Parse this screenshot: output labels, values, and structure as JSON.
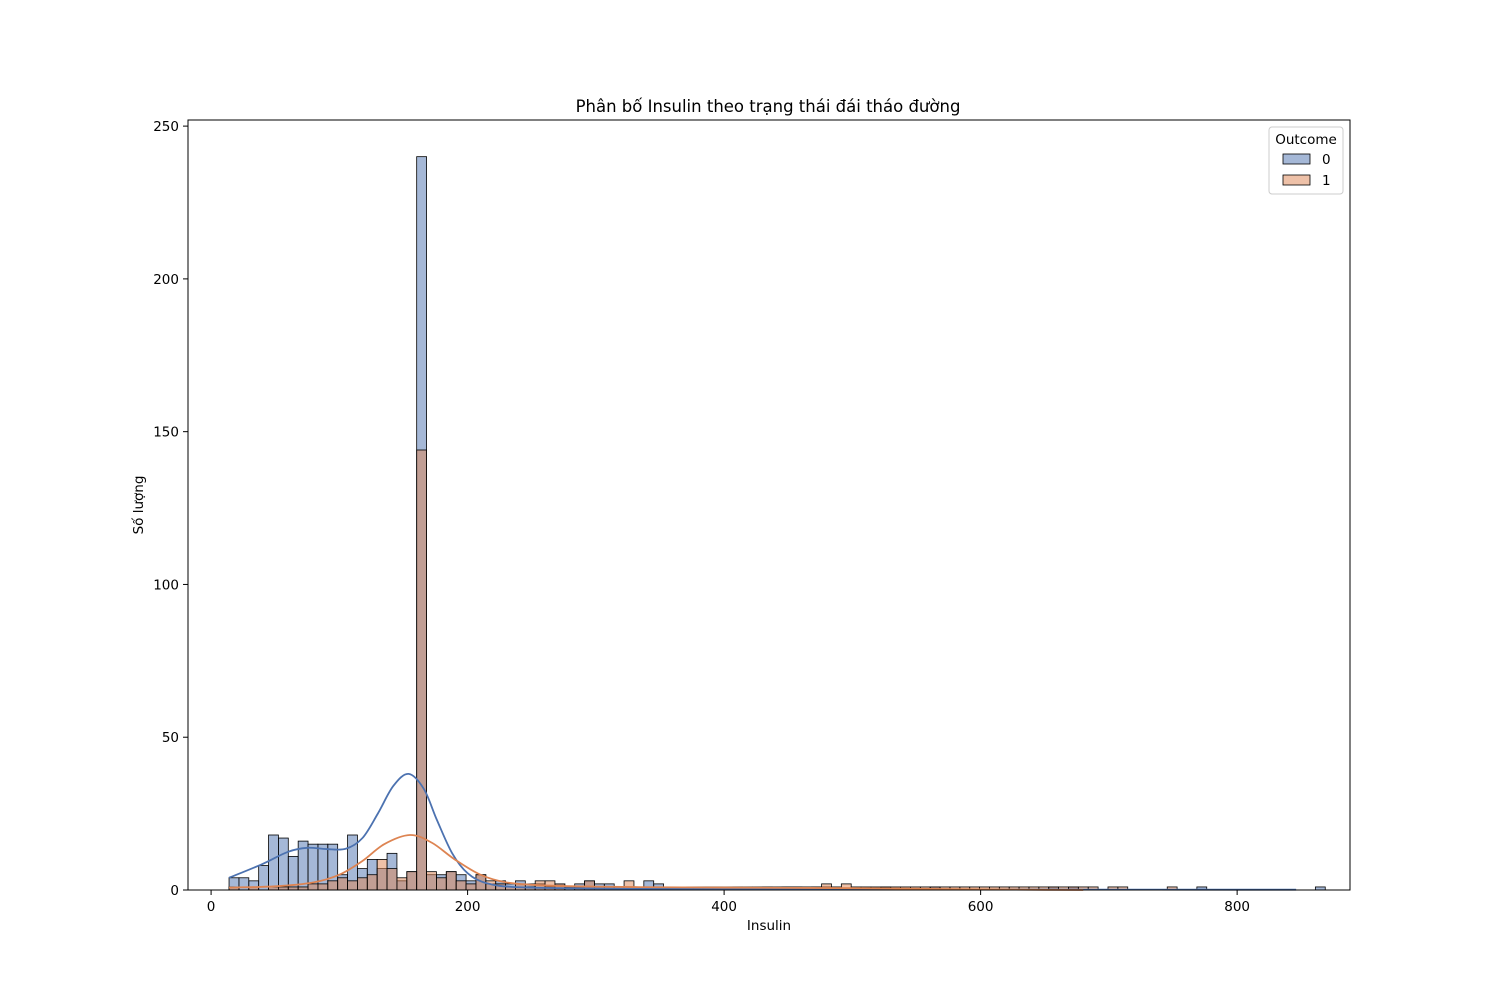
{
  "chart_data": {
    "type": "histogram",
    "title": "Phân bố Insulin theo trạng thái đái tháo đường",
    "xlabel": "Insulin",
    "ylabel": "Số lượng",
    "xlim": [
      -18,
      888
    ],
    "ylim": [
      0,
      252
    ],
    "xticks": [
      0,
      200,
      400,
      600,
      800
    ],
    "yticks": [
      0,
      50,
      100,
      150,
      200,
      250
    ],
    "bin_start": 14,
    "bin_width": 7.7,
    "grid": false,
    "legend": {
      "title": "Outcome",
      "placement": "top-right",
      "entries": [
        "0",
        "1"
      ]
    },
    "series": [
      {
        "name": "0",
        "color": "#4c72b0",
        "bin_counts": [
          4,
          4,
          3,
          8,
          18,
          17,
          11,
          16,
          15,
          15,
          15,
          5,
          18,
          7,
          10,
          7,
          12,
          3,
          6,
          240,
          5,
          5,
          6,
          5,
          3,
          5,
          2,
          3,
          2,
          3,
          2,
          2,
          1,
          2,
          1,
          2,
          3,
          2,
          2,
          1,
          1,
          1,
          3,
          2,
          1,
          1,
          1,
          1,
          1,
          1,
          0,
          1,
          0,
          0,
          1,
          0,
          1,
          1,
          0,
          1,
          1,
          0,
          0,
          0,
          0,
          0,
          1,
          0,
          0,
          0,
          0,
          1,
          0,
          0,
          0,
          0,
          0,
          0,
          0,
          0,
          0,
          0,
          0,
          1,
          0,
          1,
          0,
          0,
          0,
          0,
          0,
          0,
          0,
          0,
          0,
          0,
          0,
          0,
          1,
          0,
          0,
          0,
          0,
          0,
          0,
          0,
          0,
          0,
          0,
          0,
          1,
          0,
          0,
          0,
          0,
          0,
          0,
          0,
          0,
          0,
          0,
          0,
          0,
          0,
          0,
          0,
          0,
          0,
          0,
          0,
          0,
          0,
          0,
          0,
          0,
          0,
          0,
          0,
          0,
          0,
          1
        ],
        "kde_points": [
          [
            14,
            4
          ],
          [
            40,
            8.5
          ],
          [
            60,
            12.5
          ],
          [
            75,
            13.8
          ],
          [
            90,
            13.4
          ],
          [
            105,
            13.5
          ],
          [
            118,
            17
          ],
          [
            130,
            25
          ],
          [
            142,
            34
          ],
          [
            154,
            38
          ],
          [
            166,
            33
          ],
          [
            176,
            23
          ],
          [
            188,
            12
          ],
          [
            200,
            5.5
          ],
          [
            215,
            2.2
          ],
          [
            240,
            0.9
          ],
          [
            300,
            0.5
          ],
          [
            400,
            0.3
          ],
          [
            500,
            0.25
          ],
          [
            600,
            0.15
          ],
          [
            700,
            0.12
          ],
          [
            800,
            0.1
          ],
          [
            846,
            0.1
          ]
        ]
      },
      {
        "name": "1",
        "color": "#dd8452",
        "bin_counts": [
          1,
          0,
          1,
          0,
          1,
          1,
          1,
          1,
          2,
          2,
          3,
          4,
          3,
          4,
          5,
          10,
          7,
          4,
          6,
          144,
          6,
          4,
          6,
          3,
          2,
          5,
          3,
          2,
          1,
          2,
          1,
          3,
          3,
          2,
          0,
          1,
          3,
          1,
          1,
          1,
          3,
          1,
          1,
          1,
          1,
          0,
          1,
          1,
          1,
          1,
          1,
          1,
          1,
          1,
          1,
          1,
          1,
          1,
          1,
          1,
          1,
          1,
          1,
          1,
          1,
          1,
          1,
          1,
          1,
          1,
          1,
          1,
          1,
          1,
          1,
          1,
          1,
          1,
          1,
          1,
          1,
          1,
          1,
          1,
          1,
          1,
          1,
          1,
          0,
          1,
          1,
          0,
          0,
          0,
          0,
          1,
          0,
          0,
          0,
          0,
          0,
          0,
          0,
          0,
          0,
          0,
          0,
          0,
          0,
          0,
          0,
          0,
          0,
          0,
          0,
          0,
          0,
          0,
          0,
          0,
          0,
          0,
          0,
          0,
          0,
          0,
          0,
          0,
          0,
          0,
          0,
          0,
          0,
          0,
          0,
          0,
          0,
          0,
          0,
          0,
          0
        ],
        "bar_overrides": [
          [
            480,
            2
          ],
          [
            496,
            2
          ],
          [
            326,
            3
          ]
        ],
        "kde_points": [
          [
            14,
            0.8
          ],
          [
            50,
            1.2
          ],
          [
            80,
            2.5
          ],
          [
            100,
            5
          ],
          [
            118,
            9.5
          ],
          [
            135,
            15
          ],
          [
            155,
            18
          ],
          [
            172,
            15.5
          ],
          [
            190,
            10
          ],
          [
            210,
            5
          ],
          [
            230,
            2.5
          ],
          [
            260,
            1.5
          ],
          [
            300,
            1.1
          ],
          [
            350,
            0.9
          ],
          [
            400,
            0.8
          ],
          [
            450,
            0.7
          ],
          [
            500,
            0.6
          ],
          [
            550,
            0.4
          ],
          [
            600,
            0.2
          ],
          [
            650,
            0.05
          ],
          [
            680,
            0
          ]
        ]
      }
    ]
  }
}
